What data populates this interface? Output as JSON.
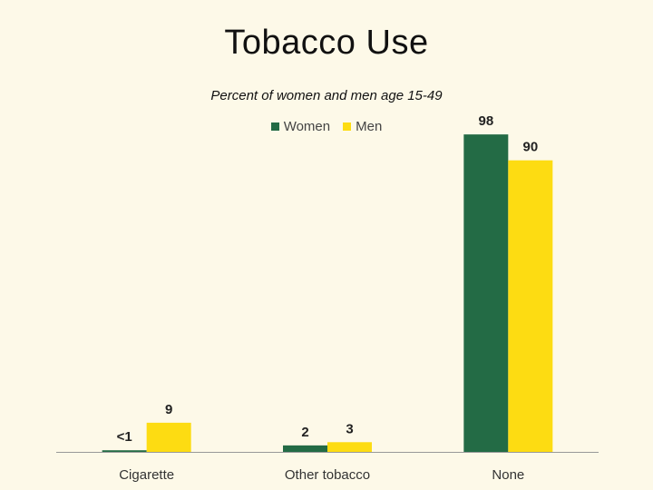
{
  "chart_data": {
    "type": "bar",
    "title": "Tobacco Use",
    "subtitle": "Percent of women and men age 15-49",
    "categories": [
      "Cigarette",
      "Other tobacco",
      "None"
    ],
    "series": [
      {
        "name": "Women",
        "color": "#236b45",
        "values": [
          0.5,
          2,
          98
        ],
        "labels": [
          "<1",
          "2",
          "98"
        ]
      },
      {
        "name": "Men",
        "color": "#fddc12",
        "values": [
          9,
          3,
          90
        ],
        "labels": [
          "9",
          "3",
          "90"
        ]
      }
    ],
    "ylim": [
      0,
      100
    ],
    "grid": false,
    "legend_position": "top"
  }
}
